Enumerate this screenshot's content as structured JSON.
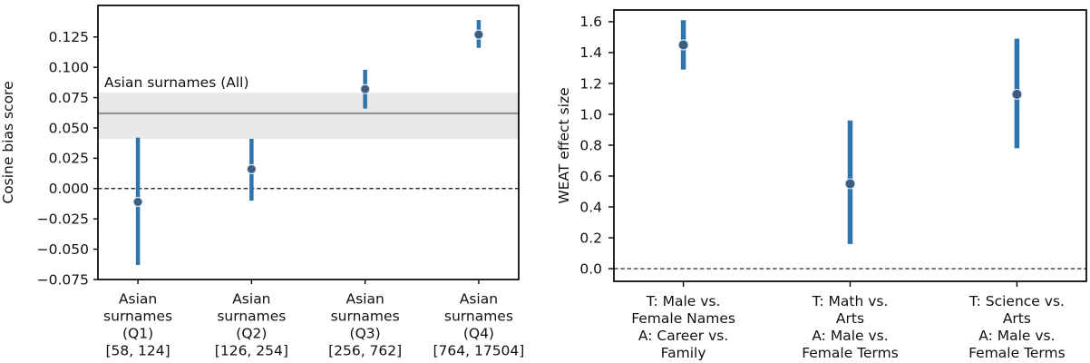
{
  "figure": {
    "background": "#ffffff"
  },
  "chart_data": [
    {
      "type": "errorbar",
      "panel": "left",
      "title": "",
      "xlabel": "",
      "ylabel": "Cosine bias score",
      "ylim": [
        -0.075,
        0.151
      ],
      "grid": false,
      "legend": null,
      "yticks": [
        0.125,
        0.1,
        0.075,
        0.05,
        0.025,
        0.0,
        -0.025,
        -0.05,
        -0.075
      ],
      "ytick_labels": [
        "0.125",
        "0.100",
        "0.075",
        "0.050",
        "0.025",
        "0.000",
        "−0.025",
        "−0.050",
        "−0.075"
      ],
      "zero_line": 0.0,
      "categories": [
        [
          "Asian",
          "surnames",
          "(Q1)",
          "[58, 124]"
        ],
        [
          "Asian",
          "surnames",
          "(Q2)",
          "[126, 254]"
        ],
        [
          "Asian",
          "surnames",
          "(Q3)",
          "[256, 762]"
        ],
        [
          "Asian",
          "surnames",
          "(Q4)",
          "[764, 17504]"
        ]
      ],
      "points": [
        {
          "value": -0.011,
          "ci": [
            -0.063,
            0.042
          ]
        },
        {
          "value": 0.016,
          "ci": [
            -0.01,
            0.041
          ]
        },
        {
          "value": 0.082,
          "ci": [
            0.066,
            0.098
          ]
        },
        {
          "value": 0.127,
          "ci": [
            0.116,
            0.139
          ]
        }
      ],
      "band": {
        "label": "Asian surnames (All)",
        "center": 0.062,
        "lo": 0.041,
        "hi": 0.079
      },
      "colors": {
        "errorbar": "#2e74ad",
        "marker": "#3d5c80",
        "marker_edge": "#dce8f2",
        "band_fill": "#e8e8e8",
        "band_line": "#8f8f8f",
        "band_label": "#9b9b9b",
        "axis": "#000000"
      }
    },
    {
      "type": "errorbar",
      "panel": "right",
      "title": "",
      "xlabel": "",
      "ylabel": "WEAT effect size",
      "ylim": [
        -0.082,
        1.676
      ],
      "grid": false,
      "legend": null,
      "yticks": [
        1.6,
        1.4,
        1.2,
        1.0,
        0.8,
        0.6,
        0.4,
        0.2,
        0.0
      ],
      "ytick_labels": [
        "1.6",
        "1.4",
        "1.2",
        "1.0",
        "0.8",
        "0.6",
        "0.4",
        "0.2",
        "0.0"
      ],
      "zero_line": 0.0,
      "categories": [
        [
          "T: Male vs.",
          "Female Names",
          "A: Career vs.",
          "Family"
        ],
        [
          "T: Math vs.",
          "Arts",
          "A: Male vs.",
          "Female Terms"
        ],
        [
          "T: Science vs.",
          "Arts",
          "A: Male vs.",
          "Female Terms"
        ]
      ],
      "points": [
        {
          "value": 1.45,
          "ci": [
            1.29,
            1.61
          ]
        },
        {
          "value": 0.55,
          "ci": [
            0.16,
            0.96
          ]
        },
        {
          "value": 1.13,
          "ci": [
            0.78,
            1.49
          ]
        }
      ],
      "band": null,
      "colors": {
        "errorbar": "#2e74ad",
        "marker": "#3d5c80",
        "marker_edge": "#dce8f2",
        "axis": "#000000"
      }
    }
  ]
}
